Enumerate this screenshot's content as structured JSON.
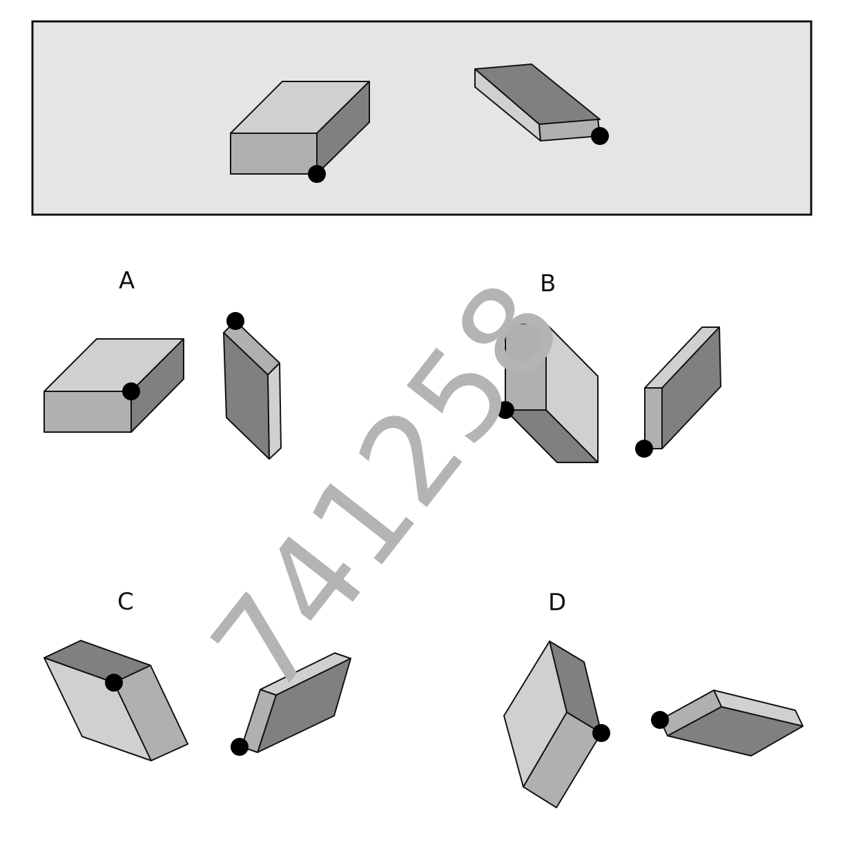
{
  "prompt_panel": {
    "background_color": "#e5e5e5",
    "border_color": "#111111"
  },
  "options": [
    {
      "id": "A",
      "label": "A"
    },
    {
      "id": "B",
      "label": "B"
    },
    {
      "id": "C",
      "label": "C"
    },
    {
      "id": "D",
      "label": "D"
    }
  ],
  "watermark": {
    "text": "741258",
    "color": "#b4b4b4"
  },
  "colors": {
    "light": "#d0d0d0",
    "mid": "#b0b0b0",
    "dark": "#808080",
    "marker": "#000000"
  }
}
